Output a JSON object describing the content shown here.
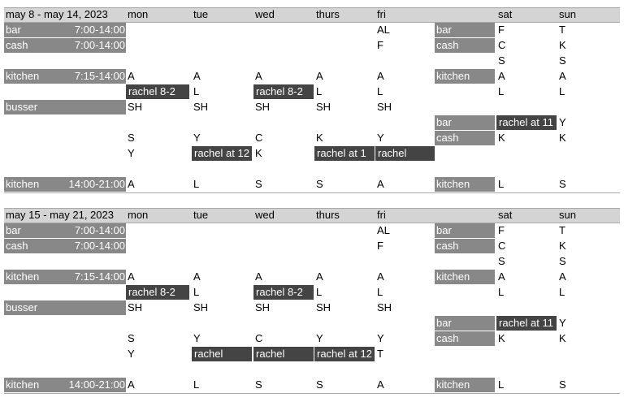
{
  "weeks": [
    {
      "title": "may 8 - may 14, 2023",
      "days": [
        "mon",
        "tue",
        "wed",
        "thurs",
        "fri",
        "sat",
        "sun"
      ],
      "rows": [
        {
          "role": "bar",
          "time": "7:00-14:00",
          "cells": [
            "",
            "",
            "",
            "",
            "AL"
          ],
          "wkrole": "bar",
          "wk": [
            "F",
            "T"
          ]
        },
        {
          "role": "cash",
          "time": "7:00-14:00",
          "cells": [
            "",
            "",
            "",
            "",
            "F"
          ],
          "wkrole": "cash",
          "wk": [
            "C",
            "K"
          ]
        },
        {
          "role": "",
          "time": "",
          "cells": [
            "",
            "",
            "",
            "",
            ""
          ],
          "wkrole": "",
          "wk": [
            "S",
            "S"
          ]
        },
        {
          "role": "kitchen",
          "time": "7:15-14:00",
          "cells": [
            "A",
            "A",
            "A",
            "A",
            "A"
          ],
          "wkrole": "kitchen",
          "wk": [
            "A",
            "A"
          ]
        },
        {
          "role": "",
          "time": "",
          "cells": [
            "rachel 8-2",
            "L",
            "rachel 8-2",
            "L",
            "L"
          ],
          "wkrole": "",
          "wk": [
            "L",
            "L"
          ]
        },
        {
          "role": "busser",
          "time": "",
          "cells": [
            "SH",
            "SH",
            "SH",
            "SH",
            "SH"
          ],
          "wkrole": "",
          "wk": [
            "",
            ""
          ]
        },
        {
          "role": "",
          "time": "",
          "cells": [
            "",
            "",
            "",
            "",
            ""
          ],
          "wkrole": "bar",
          "wk": [
            "rachel at 11",
            "Y"
          ]
        },
        {
          "role": "",
          "time": "",
          "cells": [
            "S",
            "Y",
            "C",
            "K",
            "Y"
          ],
          "wkrole": "cash",
          "wk": [
            "K",
            "K"
          ]
        },
        {
          "role": "",
          "time": "",
          "cells": [
            "Y",
            "rachel at 12",
            "K",
            "rachel at 1",
            "rachel"
          ],
          "wkrole": "",
          "wk": [
            "",
            ""
          ]
        },
        {
          "role": "",
          "time": "",
          "cells": [
            "",
            "",
            "",
            "",
            ""
          ],
          "wkrole": "",
          "wk": [
            "",
            ""
          ]
        },
        {
          "role": "kitchen",
          "time": "14:00-21:00",
          "cells": [
            "A",
            "L",
            "S",
            "S",
            "A"
          ],
          "wkrole": "kitchen",
          "wk": [
            "L",
            "S"
          ]
        }
      ]
    },
    {
      "title": "may 15 - may 21, 2023",
      "days": [
        "mon",
        "tue",
        "wed",
        "thurs",
        "fri",
        "sat",
        "sun"
      ],
      "rows": [
        {
          "role": "bar",
          "time": "7:00-14:00",
          "cells": [
            "",
            "",
            "",
            "",
            "AL"
          ],
          "wkrole": "bar",
          "wk": [
            "F",
            "T"
          ]
        },
        {
          "role": "cash",
          "time": "7:00-14:00",
          "cells": [
            "",
            "",
            "",
            "",
            "F"
          ],
          "wkrole": "cash",
          "wk": [
            "C",
            "K"
          ]
        },
        {
          "role": "",
          "time": "",
          "cells": [
            "",
            "",
            "",
            "",
            ""
          ],
          "wkrole": "",
          "wk": [
            "S",
            "S"
          ]
        },
        {
          "role": "kitchen",
          "time": "7:15-14:00",
          "cells": [
            "A",
            "A",
            "A",
            "A",
            "A"
          ],
          "wkrole": "kitchen",
          "wk": [
            "A",
            "A"
          ]
        },
        {
          "role": "",
          "time": "",
          "cells": [
            "rachel 8-2",
            "L",
            "rachel 8-2",
            "L",
            "L"
          ],
          "wkrole": "",
          "wk": [
            "L",
            "L"
          ]
        },
        {
          "role": "busser",
          "time": "",
          "cells": [
            "SH",
            "SH",
            "SH",
            "SH",
            "SH"
          ],
          "wkrole": "",
          "wk": [
            "",
            ""
          ]
        },
        {
          "role": "",
          "time": "",
          "cells": [
            "",
            "",
            "",
            "",
            ""
          ],
          "wkrole": "bar",
          "wk": [
            "rachel at 11",
            "Y"
          ]
        },
        {
          "role": "",
          "time": "",
          "cells": [
            "S",
            "Y",
            "C",
            "Y",
            "Y"
          ],
          "wkrole": "cash",
          "wk": [
            "K",
            "K"
          ]
        },
        {
          "role": "",
          "time": "",
          "cells": [
            "Y",
            "rachel",
            "rachel",
            "rachel at 12",
            "T"
          ],
          "wkrole": "",
          "wk": [
            "",
            ""
          ]
        },
        {
          "role": "",
          "time": "",
          "cells": [
            "",
            "",
            "",
            "",
            ""
          ],
          "wkrole": "",
          "wk": [
            "",
            ""
          ]
        },
        {
          "role": "kitchen",
          "time": "14:00-21:00",
          "cells": [
            "A",
            "L",
            "S",
            "S",
            "A"
          ],
          "wkrole": "kitchen",
          "wk": [
            "L",
            "S"
          ]
        }
      ]
    }
  ]
}
